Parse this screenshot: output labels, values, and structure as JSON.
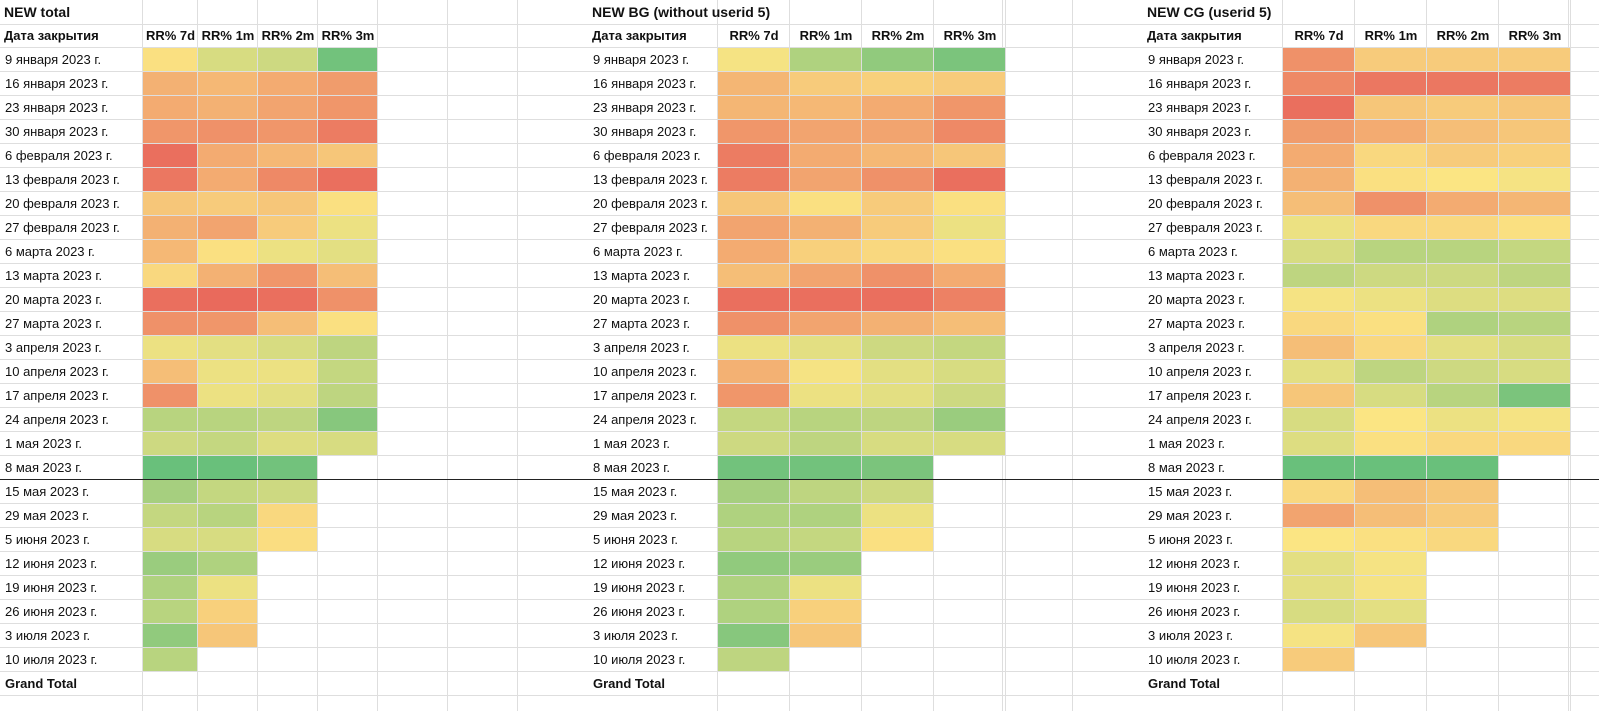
{
  "sheet": {
    "date_header": "Дата закрытия",
    "metric_headers": [
      "RR% 7d",
      "RR% 1m",
      "RR% 2m",
      "RR% 3m"
    ],
    "grand_total_label": "Grand Total",
    "dates": [
      "9 января 2023 г.",
      "16 января 2023 г.",
      "23 января 2023 г.",
      "30 января 2023 г.",
      "6 февраля 2023 г.",
      "13 февраля 2023 г.",
      "20 февраля 2023 г.",
      "27 февраля 2023 г.",
      "6 марта 2023 г.",
      "13 марта 2023 г.",
      "20 марта 2023 г.",
      "27 марта 2023 г.",
      "3 апреля 2023 г.",
      "10 апреля 2023 г.",
      "17 апреля 2023 г.",
      "24 апреля 2023 г.",
      "1 мая 2023 г.",
      "8 мая 2023 г.",
      "15 мая 2023 г.",
      "29 мая 2023 г.",
      "5 июня 2023 г.",
      "12 июня 2023 г.",
      "19 июня 2023 г.",
      "26 июня 2023 г.",
      "3 июля 2023 г.",
      "10 июля 2023 г."
    ],
    "heat_scale": {
      "low_color": "#e8625a",
      "mid_color": "#fbe583",
      "high_color": "#63be7b"
    },
    "separator_after_row": 18,
    "blocks": [
      {
        "title": "NEW total",
        "heat_levels": [
          [
            0.48,
            0.62,
            0.65,
            0.95
          ],
          [
            0.3,
            0.33,
            0.28,
            0.22
          ],
          [
            0.28,
            0.3,
            0.25,
            0.2
          ],
          [
            0.2,
            0.18,
            0.2,
            0.1
          ],
          [
            0.05,
            0.28,
            0.33,
            0.38
          ],
          [
            0.08,
            0.28,
            0.15,
            0.05
          ],
          [
            0.38,
            0.4,
            0.38,
            0.48
          ],
          [
            0.3,
            0.25,
            0.4,
            0.55
          ],
          [
            0.33,
            0.48,
            0.55,
            0.58
          ],
          [
            0.45,
            0.3,
            0.2,
            0.35
          ],
          [
            0.05,
            0.03,
            0.05,
            0.18
          ],
          [
            0.18,
            0.2,
            0.35,
            0.48
          ],
          [
            0.55,
            0.58,
            0.62,
            0.7
          ],
          [
            0.35,
            0.55,
            0.55,
            0.68
          ],
          [
            0.18,
            0.55,
            0.58,
            0.7
          ],
          [
            0.72,
            0.72,
            0.7,
            0.88
          ],
          [
            0.65,
            0.68,
            0.6,
            0.62
          ],
          [
            0.98,
            0.98,
            0.95,
            null
          ],
          [
            0.78,
            0.68,
            0.65,
            null
          ],
          [
            0.68,
            0.72,
            0.45,
            null
          ],
          [
            0.62,
            0.62,
            0.47,
            null
          ],
          [
            0.82,
            0.75,
            null,
            null
          ],
          [
            0.75,
            0.55,
            null,
            null
          ],
          [
            0.72,
            0.42,
            null,
            null
          ],
          [
            0.85,
            0.38,
            null,
            null
          ],
          [
            0.72,
            null,
            null,
            null
          ]
        ]
      },
      {
        "title": "NEW BG (without userid 5)",
        "heat_levels": [
          [
            0.52,
            0.75,
            0.85,
            0.92
          ],
          [
            0.32,
            0.4,
            0.42,
            0.4
          ],
          [
            0.32,
            0.33,
            0.28,
            0.2
          ],
          [
            0.2,
            0.25,
            0.25,
            0.15
          ],
          [
            0.1,
            0.28,
            0.33,
            0.38
          ],
          [
            0.1,
            0.25,
            0.18,
            0.05
          ],
          [
            0.38,
            0.48,
            0.4,
            0.48
          ],
          [
            0.25,
            0.3,
            0.4,
            0.55
          ],
          [
            0.28,
            0.42,
            0.45,
            0.48
          ],
          [
            0.35,
            0.25,
            0.18,
            0.28
          ],
          [
            0.05,
            0.05,
            0.05,
            0.12
          ],
          [
            0.18,
            0.25,
            0.3,
            0.35
          ],
          [
            0.55,
            0.58,
            0.65,
            0.68
          ],
          [
            0.3,
            0.52,
            0.58,
            0.62
          ],
          [
            0.2,
            0.55,
            0.58,
            0.65
          ],
          [
            0.68,
            0.72,
            0.7,
            0.82
          ],
          [
            0.65,
            0.7,
            0.62,
            0.62
          ],
          [
            0.95,
            0.95,
            0.92,
            null
          ],
          [
            0.78,
            0.7,
            0.65,
            null
          ],
          [
            0.75,
            0.75,
            0.55,
            null
          ],
          [
            0.72,
            0.68,
            0.48,
            null
          ],
          [
            0.85,
            0.82,
            null,
            null
          ],
          [
            0.75,
            0.55,
            null,
            null
          ],
          [
            0.75,
            0.42,
            null,
            null
          ],
          [
            0.88,
            0.38,
            null,
            null
          ],
          [
            0.7,
            null,
            null,
            null
          ]
        ]
      },
      {
        "title": "NEW CG (userid 5)",
        "heat_levels": [
          [
            0.18,
            0.4,
            0.4,
            0.4
          ],
          [
            0.15,
            0.08,
            0.08,
            0.1
          ],
          [
            0.05,
            0.38,
            0.4,
            0.38
          ],
          [
            0.22,
            0.28,
            0.35,
            0.38
          ],
          [
            0.28,
            0.45,
            0.4,
            0.42
          ],
          [
            0.3,
            0.48,
            0.5,
            0.52
          ],
          [
            0.35,
            0.18,
            0.28,
            0.32
          ],
          [
            0.55,
            0.45,
            0.45,
            0.48
          ],
          [
            0.62,
            0.72,
            0.72,
            0.68
          ],
          [
            0.7,
            0.65,
            0.65,
            0.7
          ],
          [
            0.52,
            0.55,
            0.6,
            0.6
          ],
          [
            0.45,
            0.48,
            0.75,
            0.72
          ],
          [
            0.35,
            0.45,
            0.58,
            0.62
          ],
          [
            0.58,
            0.7,
            0.65,
            0.62
          ],
          [
            0.38,
            0.62,
            0.72,
            0.92
          ],
          [
            0.62,
            0.5,
            0.55,
            0.52
          ],
          [
            0.6,
            0.48,
            0.45,
            0.45
          ],
          [
            0.98,
            0.98,
            0.98,
            null
          ],
          [
            0.45,
            0.35,
            0.38,
            null
          ],
          [
            0.25,
            0.35,
            0.4,
            null
          ],
          [
            0.5,
            0.48,
            0.45,
            null
          ],
          [
            0.58,
            0.52,
            null,
            null
          ],
          [
            0.58,
            0.52,
            null,
            null
          ],
          [
            0.62,
            0.58,
            null,
            null
          ],
          [
            0.52,
            0.38,
            null,
            null
          ],
          [
            0.4,
            null,
            null,
            null
          ]
        ]
      }
    ]
  }
}
